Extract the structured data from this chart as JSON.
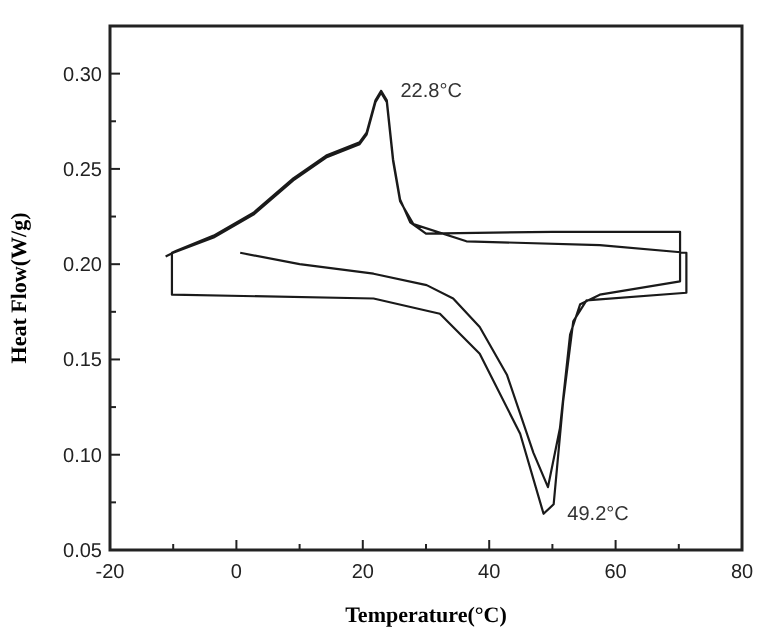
{
  "chart_data": {
    "type": "line",
    "xlabel": "Temperature(°C)",
    "ylabel": "Heat Flow(W/g)",
    "xlim": [
      -20,
      80
    ],
    "ylim": [
      0.05,
      0.325
    ],
    "xticks": [
      -20,
      {
        "value": -10,
        "label": null
      },
      0,
      {
        "value": 10,
        "label": null
      },
      20,
      {
        "value": 30,
        "label": null
      },
      40,
      {
        "value": 50,
        "label": null
      },
      60,
      {
        "value": 70,
        "label": null
      },
      80
    ],
    "yticks": [
      {
        "value": 0.05,
        "label": "0.05"
      },
      {
        "value": 0.075,
        "label": null
      },
      {
        "value": 0.1,
        "label": "0.10"
      },
      {
        "value": 0.125,
        "label": null
      },
      {
        "value": 0.15,
        "label": "0.15"
      },
      {
        "value": 0.175,
        "label": null
      },
      {
        "value": 0.2,
        "label": "0.20"
      },
      {
        "value": 0.225,
        "label": null
      },
      {
        "value": 0.25,
        "label": "0.25"
      },
      {
        "value": 0.275,
        "label": null
      },
      {
        "value": 0.3,
        "label": "0.30"
      }
    ],
    "grid": false,
    "line_style": "solid",
    "series": [
      {
        "color": "#1a1a1a",
        "x": [
          0.6,
          10,
          21.7,
          30.1,
          34.3,
          38.5,
          42.8,
          47,
          49.3,
          51.2,
          52.8,
          54.4,
          57.5,
          70.2,
          70.2,
          50,
          30,
          27.5,
          25.9,
          24.8,
          23.8,
          22.9,
          22,
          20.6,
          19.5,
          14.2,
          9,
          2.7,
          -3.6,
          -9.5,
          -10.2,
          -10.2,
          21.7,
          32.2,
          38.5,
          44.9,
          48.6,
          50.2,
          51.7,
          53.3,
          55.4,
          71.2,
          71.2,
          57.5,
          36.4,
          28,
          25.9,
          24.8,
          23.8,
          22.9,
          22,
          20.6,
          19.5,
          14.2,
          9,
          2.7,
          -3.6,
          -10,
          -11.2
        ],
        "values": [
          0.206,
          0.2,
          0.195,
          0.189,
          0.182,
          0.167,
          0.142,
          0.101,
          0.083,
          0.114,
          0.163,
          0.179,
          0.184,
          0.191,
          0.217,
          0.217,
          0.216,
          0.222,
          0.234,
          0.255,
          0.286,
          0.291,
          0.286,
          0.269,
          0.264,
          0.257,
          0.245,
          0.227,
          0.215,
          0.207,
          0.206,
          0.184,
          0.182,
          0.174,
          0.153,
          0.111,
          0.069,
          0.074,
          0.128,
          0.17,
          0.181,
          0.185,
          0.206,
          0.21,
          0.212,
          0.221,
          0.233,
          0.254,
          0.285,
          0.29,
          0.285,
          0.268,
          0.263,
          0.256,
          0.244,
          0.226,
          0.214,
          0.206,
          0.204
        ]
      }
    ],
    "annotations": [
      {
        "text": "22.8°C",
        "x": 22.8,
        "y": 0.29
      },
      {
        "text": "49.2°C",
        "x": 49.2,
        "y": 0.068
      }
    ]
  }
}
